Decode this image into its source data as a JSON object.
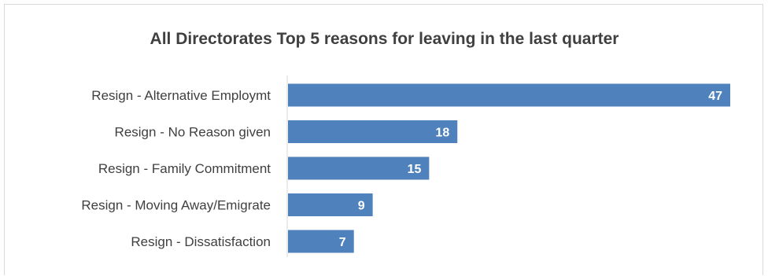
{
  "chart_data": {
    "type": "bar",
    "orientation": "horizontal",
    "title": "All Directorates Top 5 reasons for leaving in the last quarter",
    "categories": [
      "Resign - Alternative Employmt",
      "Resign - No Reason given",
      "Resign - Family Commitment",
      "Resign - Moving Away/Emigrate",
      "Resign - Dissatisfaction"
    ],
    "values": [
      47,
      18,
      15,
      9,
      7
    ],
    "data_labels": [
      "47",
      "18",
      "15",
      "9",
      "7"
    ],
    "xlim": [
      0,
      47
    ],
    "bar_color": "#4f81bd",
    "grid": false,
    "legend": "none"
  }
}
